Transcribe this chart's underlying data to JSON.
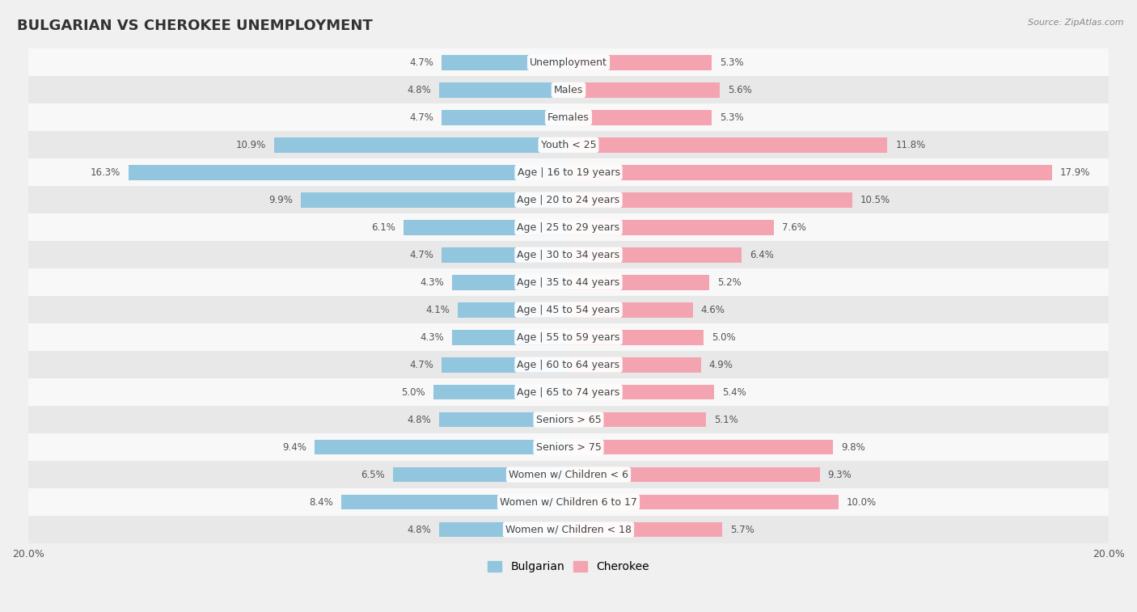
{
  "title": "BULGARIAN VS CHEROKEE UNEMPLOYMENT",
  "source": "Source: ZipAtlas.com",
  "categories": [
    "Unemployment",
    "Males",
    "Females",
    "Youth < 25",
    "Age | 16 to 19 years",
    "Age | 20 to 24 years",
    "Age | 25 to 29 years",
    "Age | 30 to 34 years",
    "Age | 35 to 44 years",
    "Age | 45 to 54 years",
    "Age | 55 to 59 years",
    "Age | 60 to 64 years",
    "Age | 65 to 74 years",
    "Seniors > 65",
    "Seniors > 75",
    "Women w/ Children < 6",
    "Women w/ Children 6 to 17",
    "Women w/ Children < 18"
  ],
  "bulgarian": [
    4.7,
    4.8,
    4.7,
    10.9,
    16.3,
    9.9,
    6.1,
    4.7,
    4.3,
    4.1,
    4.3,
    4.7,
    5.0,
    4.8,
    9.4,
    6.5,
    8.4,
    4.8
  ],
  "cherokee": [
    5.3,
    5.6,
    5.3,
    11.8,
    17.9,
    10.5,
    7.6,
    6.4,
    5.2,
    4.6,
    5.0,
    4.9,
    5.4,
    5.1,
    9.8,
    9.3,
    10.0,
    5.7
  ],
  "bulgarian_color": "#92c5de",
  "cherokee_color": "#f4a4b0",
  "bulgarian_label": "Bulgarian",
  "cherokee_label": "Cherokee",
  "axis_max": 20.0,
  "bg_color": "#f0f0f0",
  "row_color_light": "#f8f8f8",
  "row_color_dark": "#e8e8e8",
  "label_font_size": 9,
  "title_font_size": 13,
  "source_font_size": 8,
  "value_font_size": 8.5
}
